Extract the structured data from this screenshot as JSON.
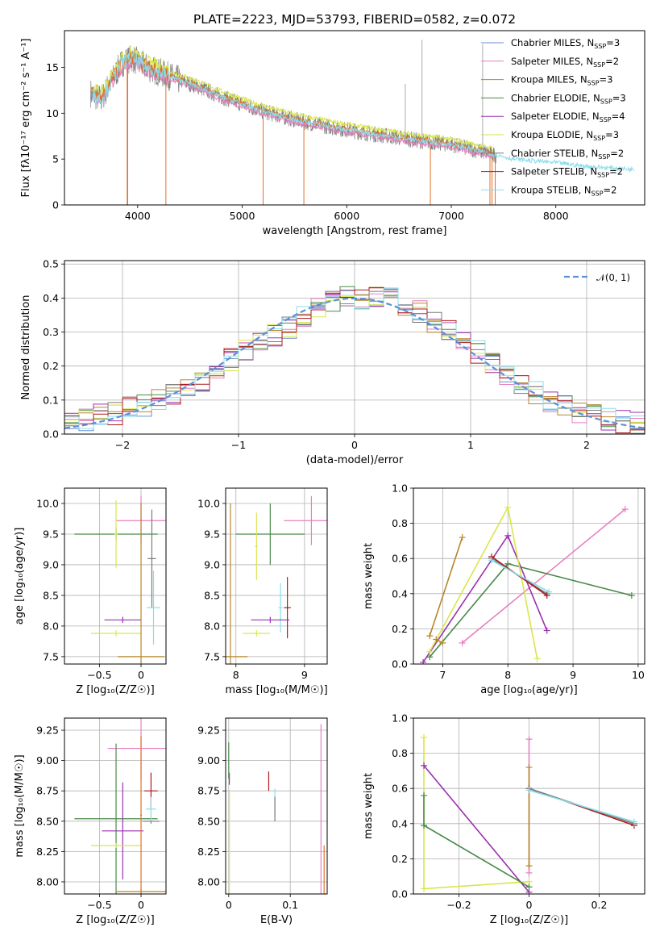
{
  "title": "PLATE=2223, MJD=53793, FIBERID=0582, z=0.072",
  "colors": {
    "Chabrier MILES": "#6b8cd6",
    "Salpeter MILES": "#e87fc0",
    "Kroupa MILES": "#b8862a",
    "Chabrier ELODIE": "#4a8a4a",
    "Salpeter ELODIE": "#9b30b0",
    "Kroupa ELODIE": "#d9e64a",
    "Chabrier STELIB": "#7a7a7a",
    "Salpeter STELIB": "#b01818",
    "Kroupa STELIB": "#88ddea",
    "data": "#808080",
    "fit_orange": "#e0702a",
    "normal": "#5b8fd9"
  },
  "legend_spectrum": [
    {
      "name": "Chabrier MILES",
      "n": "3"
    },
    {
      "name": "Salpeter MILES",
      "n": "2"
    },
    {
      "name": "Kroupa MILES",
      "n": "3"
    },
    {
      "name": "Chabrier ELODIE",
      "n": "3"
    },
    {
      "name": "Salpeter ELODIE",
      "n": "4"
    },
    {
      "name": "Kroupa ELODIE",
      "n": "3"
    },
    {
      "name": "Chabrier STELIB",
      "n": "2"
    },
    {
      "name": "Salpeter STELIB",
      "n": "2"
    },
    {
      "name": "Kroupa STELIB",
      "n": "2"
    }
  ],
  "legend_hist": "𝒩(0, 1)",
  "chart_data": [
    {
      "id": "spectrum",
      "type": "line",
      "xlabel": "wavelength [Angstrom, rest frame]",
      "ylabel": "Flux [fλ10⁻¹⁷ erg cm⁻² s⁻¹ A⁻¹]",
      "xlim": [
        3300,
        8850
      ],
      "ylim": [
        0,
        19
      ],
      "xticks": [
        4000,
        5000,
        6000,
        7000,
        8000
      ],
      "yticks": [
        0,
        5,
        10,
        15
      ],
      "continuum": [
        [
          3550,
          12.2
        ],
        [
          3650,
          11.5
        ],
        [
          3750,
          13.5
        ],
        [
          3850,
          15.5
        ],
        [
          3950,
          16.0
        ],
        [
          4050,
          15.2
        ],
        [
          4200,
          14.5
        ],
        [
          4400,
          13.6
        ],
        [
          4600,
          12.8
        ],
        [
          4800,
          11.8
        ],
        [
          5000,
          11.0
        ],
        [
          5200,
          10.2
        ],
        [
          5500,
          9.3
        ],
        [
          5800,
          8.6
        ],
        [
          6100,
          8.0
        ],
        [
          6400,
          7.5
        ],
        [
          6700,
          7.0
        ],
        [
          7000,
          6.6
        ],
        [
          7300,
          5.8
        ],
        [
          7600,
          5.0
        ],
        [
          8000,
          4.6
        ],
        [
          8300,
          4.2
        ],
        [
          8700,
          3.9
        ]
      ],
      "spikes": [
        [
          3900,
          0
        ],
        [
          3905,
          0
        ],
        [
          4270,
          0
        ],
        [
          5200,
          0
        ],
        [
          5590,
          0
        ],
        [
          6560,
          13.2
        ],
        [
          6720,
          18.0
        ],
        [
          6800,
          0
        ],
        [
          7300,
          17.5
        ],
        [
          7370,
          0
        ],
        [
          7390,
          0
        ],
        [
          7420,
          0
        ]
      ],
      "gridlines": false
    },
    {
      "id": "residuals",
      "type": "area",
      "xlabel": "(data-model)/error",
      "ylabel": "Normed distribution",
      "xlim": [
        -2.5,
        2.5
      ],
      "ylim": [
        0,
        0.51
      ],
      "xticks": [
        -2,
        -1,
        0,
        1,
        2
      ],
      "yticks": [
        0.0,
        0.1,
        0.2,
        0.3,
        0.4,
        0.5
      ],
      "bin_width": 0.1,
      "envelope": [
        0.035,
        0.04,
        0.055,
        0.06,
        0.075,
        0.085,
        0.1,
        0.12,
        0.14,
        0.16,
        0.19,
        0.22,
        0.25,
        0.27,
        0.29,
        0.31,
        0.34,
        0.37,
        0.39,
        0.4,
        0.4,
        0.41,
        0.4,
        0.38,
        0.36,
        0.33,
        0.3,
        0.27,
        0.24,
        0.21,
        0.18,
        0.15,
        0.12,
        0.1,
        0.08,
        0.065,
        0.055,
        0.045,
        0.035,
        0.03,
        0.028
      ],
      "normal_mu": 0,
      "normal_sigma": 1,
      "gridlines": true
    },
    {
      "id": "age-vs-Z",
      "type": "scatter",
      "xlabel": "Z [log₁₀(Z/Z☉)]",
      "ylabel": "age  [log₁₀(age/yr)]",
      "xlim": [
        -0.92,
        0.3
      ],
      "ylim": [
        7.38,
        10.25
      ],
      "xticks": [
        -0.5,
        0.0
      ],
      "yticks": [
        7.5,
        8.0,
        8.5,
        9.0,
        9.5,
        10.0
      ],
      "points": [
        {
          "series": "Salpeter MILES",
          "x": 0.0,
          "y": 9.72,
          "xerr": 0.3,
          "yerr": 0.4
        },
        {
          "series": "Chabrier ELODIE",
          "x": -0.3,
          "y": 9.5,
          "xerr": 0.5,
          "yerr": 0.1
        },
        {
          "series": "Kroupa ELODIE",
          "x": -0.3,
          "y": 9.5,
          "xerr": 0.02,
          "yerr": 0.55
        },
        {
          "series": "Chabrier STELIB",
          "x": 0.13,
          "y": 9.1,
          "xerr": 0.05,
          "yerr": 0.8
        },
        {
          "series": "Kroupa STELIB",
          "x": 0.15,
          "y": 8.3,
          "xerr": 0.08,
          "yerr": 0.6
        },
        {
          "series": "Salpeter ELODIE",
          "x": -0.22,
          "y": 8.1,
          "xerr": 0.22,
          "yerr": 0.05
        },
        {
          "series": "Kroupa ELODIE",
          "x": -0.3,
          "y": 7.88,
          "xerr": 0.3,
          "yerr": 0.05
        },
        {
          "series": "Kroupa MILES",
          "x": 0.0,
          "y": 7.5,
          "xerr": 0.28,
          "yerr": 2.5
        }
      ]
    },
    {
      "id": "age-vs-mass",
      "type": "scatter",
      "xlabel": "mass [log₁₀(M/M☉)]",
      "ylabel": "",
      "xlim": [
        7.85,
        9.33
      ],
      "ylim": [
        7.38,
        10.25
      ],
      "xticks": [
        8,
        9
      ],
      "yticks": [
        7.5,
        8.0,
        8.5,
        9.0,
        9.5,
        10.0
      ],
      "points": [
        {
          "series": "Salpeter MILES",
          "x": 9.1,
          "y": 9.72,
          "xerr": 0.4,
          "yerr": 0.4
        },
        {
          "series": "Chabrier ELODIE",
          "x": 8.5,
          "y": 9.5,
          "xerr": 0.5,
          "yerr": 0.5
        },
        {
          "series": "Kroupa ELODIE",
          "x": 8.3,
          "y": 9.3,
          "xerr": 0.02,
          "yerr": 0.55
        },
        {
          "series": "Salpeter STELIB",
          "x": 8.75,
          "y": 8.3,
          "xerr": 0.05,
          "yerr": 0.5
        },
        {
          "series": "Kroupa STELIB",
          "x": 8.65,
          "y": 8.3,
          "xerr": 0.03,
          "yerr": 0.4
        },
        {
          "series": "Salpeter ELODIE",
          "x": 8.5,
          "y": 8.1,
          "xerr": 0.28,
          "yerr": 0.05
        },
        {
          "series": "Kroupa ELODIE",
          "x": 8.3,
          "y": 7.88,
          "xerr": 0.2,
          "yerr": 0.05
        },
        {
          "series": "Kroupa MILES",
          "x": 7.92,
          "y": 7.5,
          "xerr": 0.25,
          "yerr": 2.5
        }
      ]
    },
    {
      "id": "massweight-vs-age",
      "type": "line",
      "xlabel": "age  [log₁₀(age/yr)]",
      "ylabel": "mass weight",
      "xlim": [
        6.55,
        10.1
      ],
      "ylim": [
        0,
        1.0
      ],
      "xticks": [
        7,
        8,
        9,
        10
      ],
      "yticks": [
        0.0,
        0.2,
        0.4,
        0.6,
        0.8,
        1.0
      ],
      "series": [
        {
          "name": "Salpeter MILES",
          "points": [
            [
              7.3,
              0.12
            ],
            [
              9.8,
              0.88
            ]
          ]
        },
        {
          "name": "Kroupa MILES",
          "points": [
            [
              6.8,
              0.16
            ],
            [
              7.3,
              0.72
            ]
          ]
        },
        {
          "name": "Chabrier ELODIE",
          "points": [
            [
              6.8,
              0.04
            ],
            [
              8.0,
              0.57
            ],
            [
              9.9,
              0.39
            ]
          ]
        },
        {
          "name": "Salpeter ELODIE",
          "points": [
            [
              6.7,
              0.01
            ],
            [
              8.0,
              0.73
            ],
            [
              8.6,
              0.19
            ]
          ]
        },
        {
          "name": "Kroupa ELODIE",
          "points": [
            [
              6.8,
              0.07
            ],
            [
              8.0,
              0.89
            ],
            [
              8.45,
              0.03
            ]
          ]
        },
        {
          "name": "Chabrier STELIB",
          "points": [
            [
              7.75,
              0.6
            ],
            [
              8.6,
              0.4
            ]
          ]
        },
        {
          "name": "Salpeter STELIB",
          "points": [
            [
              7.75,
              0.61
            ],
            [
              8.6,
              0.39
            ]
          ]
        },
        {
          "name": "Kroupa STELIB",
          "points": [
            [
              7.75,
              0.59
            ],
            [
              8.63,
              0.41
            ]
          ]
        },
        {
          "name": "Kroupa MILES",
          "points": [
            [
              6.9,
              0.14
            ],
            [
              7.0,
              0.12
            ]
          ]
        }
      ]
    },
    {
      "id": "mass-vs-Z",
      "type": "scatter",
      "xlabel": "Z [log₁₀(Z/Z☉)]",
      "ylabel": "mass [log₁₀(M/M☉)]",
      "xlim": [
        -0.92,
        0.3
      ],
      "ylim": [
        7.9,
        9.35
      ],
      "xticks": [
        -0.5,
        0.0
      ],
      "yticks": [
        8.0,
        8.25,
        8.5,
        8.75,
        9.0,
        9.25
      ],
      "points": [
        {
          "series": "Salpeter MILES",
          "x": 0.0,
          "y": 9.1,
          "xerr": 0.4,
          "yerr": 0.25
        },
        {
          "series": "Chabrier ELODIE",
          "x": -0.3,
          "y": 8.52,
          "xerr": 0.5,
          "yerr": 0.62
        },
        {
          "series": "Salpeter ELODIE",
          "x": -0.22,
          "y": 8.42,
          "xerr": 0.25,
          "yerr": 0.4
        },
        {
          "series": "Kroupa ELODIE",
          "x": -0.3,
          "y": 8.3,
          "xerr": 0.3,
          "yerr": 0.02
        },
        {
          "series": "Salpeter STELIB",
          "x": 0.12,
          "y": 8.75,
          "xerr": 0.08,
          "yerr": 0.15
        },
        {
          "series": "Chabrier STELIB",
          "x": 0.12,
          "y": 8.5,
          "xerr": 0.1,
          "yerr": 0.02
        },
        {
          "series": "Kroupa STELIB",
          "x": 0.12,
          "y": 8.6,
          "xerr": 0.06,
          "yerr": 0.1
        },
        {
          "series": "Kroupa MILES",
          "x": 0.0,
          "y": 7.92,
          "xerr": 0.3,
          "yerr": 0.02
        },
        {
          "series": "fit_orange",
          "x": 0.0,
          "y": 8.55,
          "xerr": 0.01,
          "yerr": 0.65
        }
      ]
    },
    {
      "id": "mass-vs-ebv",
      "type": "scatter",
      "xlabel": "E(B-V)",
      "ylabel": "",
      "xlim": [
        -0.005,
        0.16
      ],
      "ylim": [
        7.9,
        9.35
      ],
      "xticks": [
        0.0,
        0.1
      ],
      "yticks": [
        8.0,
        8.25,
        8.5,
        8.75,
        9.0,
        9.25
      ],
      "points": [
        {
          "series": "Salpeter ELODIE",
          "x": 0.001,
          "y": 8.85,
          "xerr": 0,
          "yerr": 0.05
        },
        {
          "series": "Chabrier ELODIE",
          "x": 0.0,
          "y": 9.0,
          "xerr": 0,
          "yerr": 0.15
        },
        {
          "series": "Kroupa ELODIE",
          "x": 0.001,
          "y": 8.3,
          "xerr": 0,
          "yerr": 0.45
        },
        {
          "series": "Salpeter STELIB",
          "x": 0.065,
          "y": 8.83,
          "xerr": 0,
          "yerr": 0.08
        },
        {
          "series": "Kroupa STELIB",
          "x": 0.075,
          "y": 8.65,
          "xerr": 0,
          "yerr": 0.12
        },
        {
          "series": "Chabrier STELIB",
          "x": 0.075,
          "y": 8.6,
          "xerr": 0,
          "yerr": 0.1
        },
        {
          "series": "Salpeter MILES",
          "x": 0.15,
          "y": 8.6,
          "xerr": 0,
          "yerr": 0.7
        },
        {
          "series": "fit_orange",
          "x": 0.155,
          "y": 8.1,
          "xerr": 0,
          "yerr": 0.2
        }
      ]
    },
    {
      "id": "massweight-vs-Z",
      "type": "line",
      "xlabel": "Z [log₁₀(Z/Z☉)]",
      "ylabel": "mass weight",
      "xlim": [
        -0.33,
        0.33
      ],
      "ylim": [
        0,
        1.0
      ],
      "xticks": [
        -0.2,
        0.0,
        0.2
      ],
      "yticks": [
        0.0,
        0.2,
        0.4,
        0.6,
        0.8,
        1.0
      ],
      "series": [
        {
          "name": "Kroupa ELODIE",
          "points": [
            [
              -0.3,
              0.89
            ],
            [
              -0.3,
              0.03
            ],
            [
              0.0,
              0.07
            ]
          ]
        },
        {
          "name": "Salpeter ELODIE",
          "points": [
            [
              -0.3,
              0.73
            ],
            [
              0.0,
              0.01
            ]
          ]
        },
        {
          "name": "Chabrier ELODIE",
          "points": [
            [
              -0.3,
              0.56
            ],
            [
              -0.3,
              0.39
            ],
            [
              0.0,
              0.04
            ]
          ]
        },
        {
          "name": "Salpeter MILES",
          "points": [
            [
              0.0,
              0.88
            ],
            [
              0.0,
              0.12
            ]
          ]
        },
        {
          "name": "Kroupa MILES",
          "points": [
            [
              0.0,
              0.72
            ],
            [
              0.0,
              0.16
            ]
          ]
        },
        {
          "name": "Salpeter STELIB",
          "points": [
            [
              0.0,
              0.6
            ],
            [
              0.3,
              0.39
            ]
          ]
        },
        {
          "name": "Chabrier STELIB",
          "points": [
            [
              0.0,
              0.6
            ],
            [
              0.3,
              0.4
            ]
          ]
        },
        {
          "name": "Kroupa STELIB",
          "points": [
            [
              0.0,
              0.59
            ],
            [
              0.3,
              0.41
            ]
          ]
        }
      ]
    }
  ]
}
